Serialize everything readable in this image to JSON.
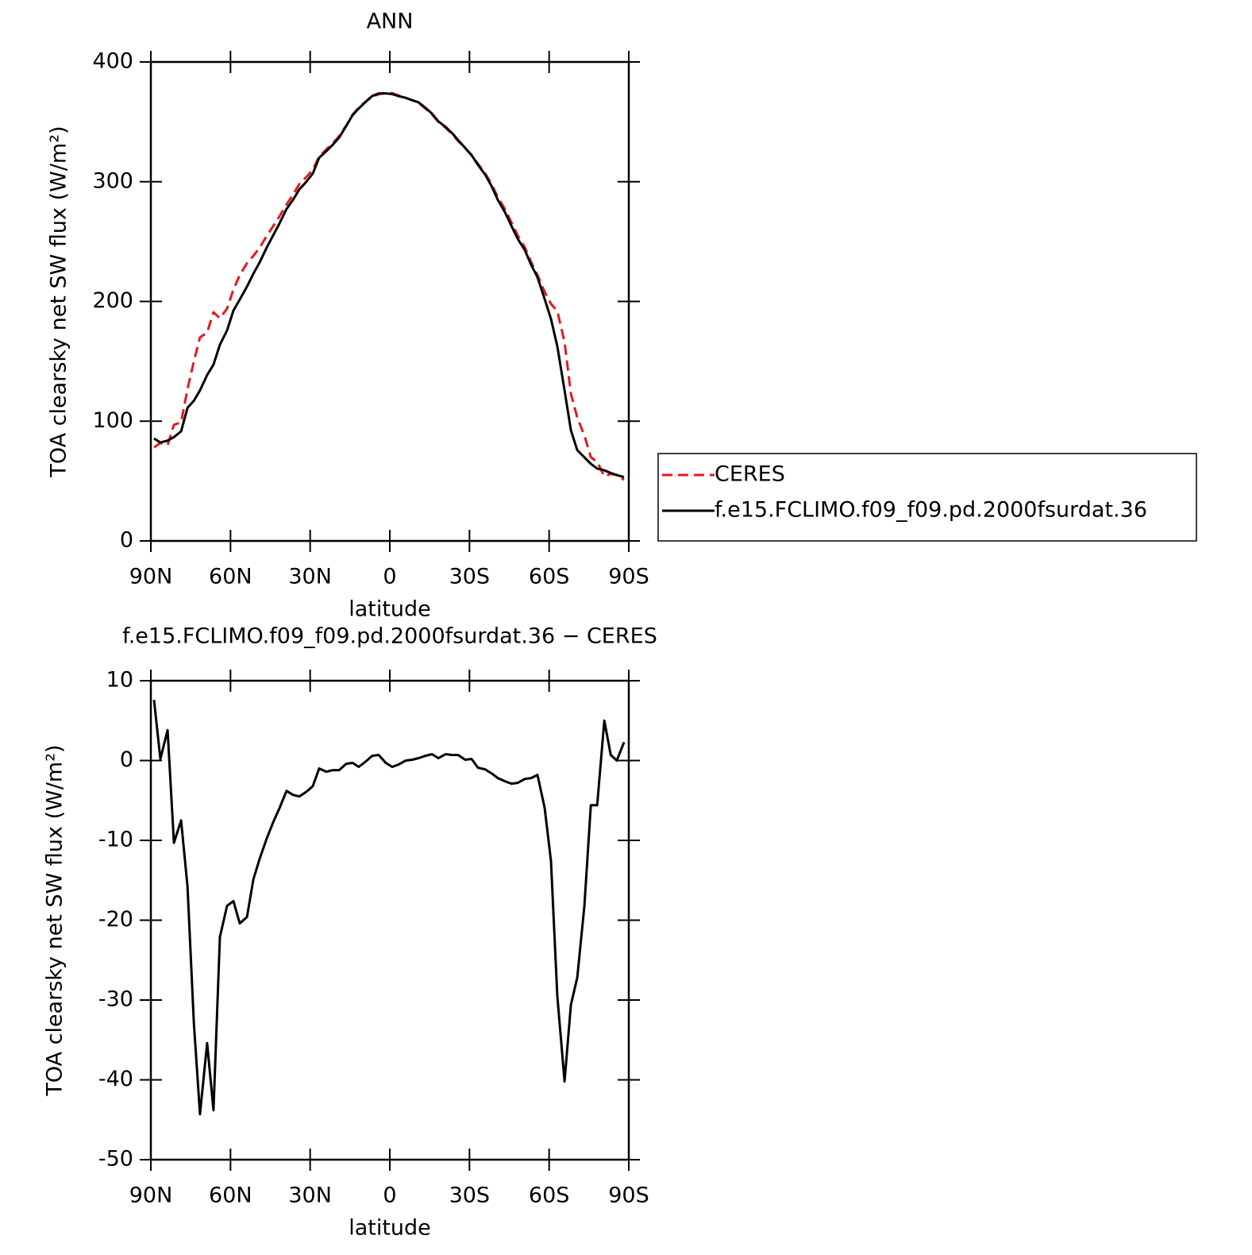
{
  "chart_data": [
    {
      "type": "line",
      "title": "ANN",
      "x_label": "latitude",
      "y_label": "TOA clearsky net SW flux (W/m²)",
      "x": [
        88.8,
        86.4,
        83.7,
        81.3,
        78.6,
        76.2,
        73.8,
        71.5,
        68.8,
        66.4,
        64.0,
        61.3,
        58.9,
        56.5,
        53.8,
        51.4,
        49.0,
        46.3,
        43.9,
        41.6,
        38.9,
        36.5,
        34.1,
        31.4,
        29.0,
        26.6,
        23.9,
        21.5,
        19.1,
        16.4,
        14.0,
        11.7,
        9.0,
        6.6,
        4.2,
        1.5,
        -0.9,
        -3.3,
        -6.0,
        -8.4,
        -10.8,
        -13.5,
        -15.9,
        -18.3,
        -21.0,
        -23.4,
        -25.7,
        -28.4,
        -30.8,
        -33.2,
        -35.9,
        -38.3,
        -40.7,
        -43.4,
        -45.8,
        -48.2,
        -50.9,
        -53.2,
        -55.6,
        -58.3,
        -60.7,
        -63.1,
        -65.8,
        -68.2,
        -70.6,
        -73.3,
        -75.7,
        -78.1,
        -80.8,
        -83.2,
        -85.5,
        -88.2
      ],
      "series": [
        {
          "name": "CERES",
          "color": "#e41a1c",
          "dashed": true,
          "values": [
            78,
            82,
            80,
            97,
            99,
            127,
            150,
            170,
            174,
            191,
            186,
            194,
            210,
            222,
            232,
            238,
            245,
            255,
            263,
            271,
            281,
            289,
            298,
            304,
            310,
            321,
            327,
            332,
            338,
            347,
            356,
            362,
            367,
            371,
            373,
            374,
            374,
            372,
            370,
            368,
            366,
            361,
            356,
            350,
            345,
            340,
            334,
            328,
            322,
            315,
            307,
            298,
            287,
            277,
            266,
            255,
            245,
            233,
            222,
            208,
            198,
            192,
            166,
            123,
            103,
            88,
            70,
            66,
            54,
            56,
            55,
            51
          ]
        },
        {
          "name": "f.e15.FCLIMO.f09_f09.pd.2000fsurdat.36",
          "color": "#000000",
          "dashed": false,
          "values": [
            85.6,
            82.2,
            83.8,
            86.7,
            91.5,
            111.2,
            117.1,
            125.7,
            138.6,
            147.2,
            163.9,
            175.8,
            192.4,
            201.6,
            212.4,
            223.1,
            232.7,
            245.3,
            255.3,
            265,
            277.2,
            284.7,
            293.5,
            300.1,
            306.8,
            320,
            325.6,
            330.8,
            336.8,
            346.6,
            355.7,
            361.2,
            366.9,
            371.6,
            373.7,
            373.7,
            373.2,
            371.5,
            370,
            368.1,
            366.3,
            361.6,
            356.8,
            350.3,
            345.8,
            340.7,
            334.7,
            328.1,
            322.2,
            314.1,
            305.9,
            296.4,
            284.8,
            274.4,
            263.1,
            252.2,
            242.7,
            230.8,
            220.2,
            202.1,
            185.4,
            162.5,
            125.8,
            92.4,
            75.8,
            69.8,
            64.4,
            60.4,
            59,
            56.7,
            55,
            53.3
          ]
        }
      ],
      "xlim": [
        90,
        -90
      ],
      "xticks": [
        {
          "value": 90,
          "label": "90N"
        },
        {
          "value": 60,
          "label": "60N"
        },
        {
          "value": 30,
          "label": "30N"
        },
        0,
        {
          "value": -30,
          "label": "30S"
        },
        {
          "value": -60,
          "label": "60S"
        },
        {
          "value": -90,
          "label": "90S"
        }
      ],
      "ylim": [
        0,
        400
      ],
      "yticks": [
        0,
        100,
        200,
        300,
        400
      ],
      "legend": "right"
    },
    {
      "type": "line",
      "title": "f.e15.FCLIMO.f09_f09.pd.2000fsurdat.36 − CERES",
      "x_label": "latitude",
      "y_label": "TOA clearsky net SW flux (W/m²)",
      "x": [
        88.8,
        86.4,
        83.7,
        81.3,
        78.6,
        76.2,
        73.8,
        71.5,
        68.8,
        66.4,
        64.0,
        61.3,
        58.9,
        56.5,
        53.8,
        51.4,
        49.0,
        46.3,
        43.9,
        41.6,
        38.9,
        36.5,
        34.1,
        31.4,
        29.0,
        26.6,
        23.9,
        21.5,
        19.1,
        16.4,
        14.0,
        11.7,
        9.0,
        6.6,
        4.2,
        1.5,
        -0.9,
        -3.3,
        -6.0,
        -8.4,
        -10.8,
        -13.5,
        -15.9,
        -18.3,
        -21.0,
        -23.4,
        -25.7,
        -28.4,
        -30.8,
        -33.2,
        -35.9,
        -38.3,
        -40.7,
        -43.4,
        -45.8,
        -48.2,
        -50.9,
        -53.2,
        -55.6,
        -58.3,
        -60.7,
        -63.1,
        -65.8,
        -68.2,
        -70.6,
        -73.3,
        -75.7,
        -78.1,
        -80.8,
        -83.2,
        -85.5,
        -88.2
      ],
      "values": [
        7.6,
        0.2,
        3.8,
        -10.3,
        -7.5,
        -15.8,
        -32.9,
        -44.3,
        -35.4,
        -43.8,
        -22.1,
        -18.2,
        -17.6,
        -20.4,
        -19.6,
        -14.9,
        -12.3,
        -9.7,
        -7.7,
        -6.0,
        -3.8,
        -4.3,
        -4.5,
        -3.9,
        -3.2,
        -1.0,
        -1.4,
        -1.2,
        -1.2,
        -0.4,
        -0.3,
        -0.8,
        -0.1,
        0.6,
        0.7,
        -0.3,
        -0.8,
        -0.5,
        0.0,
        0.1,
        0.3,
        0.6,
        0.8,
        0.3,
        0.8,
        0.7,
        0.7,
        0.1,
        0.2,
        -0.9,
        -1.1,
        -1.6,
        -2.2,
        -2.6,
        -2.9,
        -2.8,
        -2.3,
        -2.2,
        -1.8,
        -5.9,
        -12.6,
        -29.5,
        -40.2,
        -30.6,
        -27.2,
        -18.2,
        -5.6,
        -5.6,
        5.0,
        0.7,
        0.0,
        2.3
      ],
      "color": "#000000",
      "xlim": [
        90,
        -90
      ],
      "xticks": [
        {
          "value": 90,
          "label": "90N"
        },
        {
          "value": 60,
          "label": "60N"
        },
        {
          "value": 30,
          "label": "30N"
        },
        0,
        {
          "value": -30,
          "label": "30S"
        },
        {
          "value": -60,
          "label": "60S"
        },
        {
          "value": -90,
          "label": "90S"
        }
      ],
      "ylim": [
        -50,
        10
      ],
      "yticks": [
        -50,
        -40,
        -30,
        -20,
        -10,
        0,
        10
      ]
    }
  ]
}
